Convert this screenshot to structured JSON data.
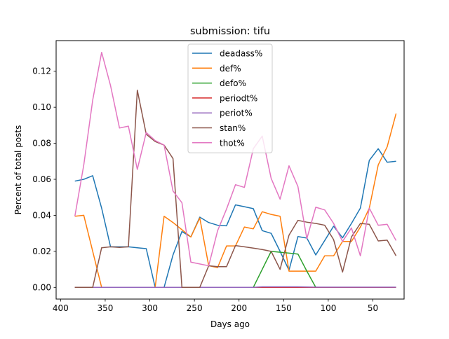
{
  "chart_data": {
    "type": "line",
    "title": "submission: tifu",
    "xlabel": "Days ago",
    "ylabel": "Percent of total posts",
    "xlim": [
      405,
      15
    ],
    "ylim": [
      -0.0065,
      0.137
    ],
    "x_ticks": [
      400,
      350,
      300,
      250,
      200,
      150,
      100,
      50
    ],
    "y_ticks": [
      0.0,
      0.02,
      0.04,
      0.06,
      0.08,
      0.1,
      0.12
    ],
    "y_tick_labels": [
      "0.00",
      "0.02",
      "0.04",
      "0.06",
      "0.08",
      "0.10",
      "0.12"
    ],
    "grid": false,
    "legend_position": "top-center",
    "x": [
      384,
      374,
      364,
      354,
      344,
      334,
      324,
      314,
      304,
      294,
      284,
      274,
      264,
      254,
      244,
      234,
      224,
      214,
      204,
      194,
      184,
      174,
      164,
      154,
      144,
      134,
      124,
      114,
      104,
      94,
      84,
      74,
      64,
      54,
      44,
      34,
      24
    ],
    "series": [
      {
        "name": "deadass%",
        "color": "#1f77b4",
        "values": [
          0.059,
          0.06,
          0.062,
          0.044,
          0.0225,
          0.0225,
          0.0225,
          0.022,
          0.0215,
          0.0,
          0.0,
          0.018,
          0.031,
          0.028,
          0.039,
          0.036,
          0.0345,
          0.0342,
          0.0458,
          0.0448,
          0.0437,
          0.0315,
          0.03,
          0.02,
          0.0095,
          0.0282,
          0.0274,
          0.018,
          0.026,
          0.034,
          0.0275,
          0.0355,
          0.044,
          0.0705,
          0.077,
          0.0695,
          0.07
        ]
      },
      {
        "name": "def%",
        "color": "#ff7f0e",
        "values": [
          0.0395,
          0.04,
          0.02,
          0.0,
          0.0,
          0.0,
          0.0,
          0.0,
          0.0,
          0.0,
          0.0395,
          0.036,
          0.032,
          0.028,
          0.0385,
          0.012,
          0.011,
          0.023,
          0.023,
          0.0335,
          0.0325,
          0.042,
          0.0405,
          0.0395,
          0.009,
          0.009,
          0.009,
          0.009,
          0.0175,
          0.0175,
          0.0255,
          0.0255,
          0.0335,
          0.044,
          0.068,
          0.078,
          0.0965
        ]
      },
      {
        "name": "defo%",
        "color": "#2ca02c",
        "values": [
          0.0,
          0.0,
          0.0,
          0.0,
          0.0,
          0.0,
          0.0,
          0.0,
          0.0,
          0.0,
          0.0,
          0.0,
          0.0,
          0.0,
          0.0,
          0.0,
          0.0,
          0.0,
          0.0,
          0.0,
          0.0,
          0.01,
          0.02,
          0.0195,
          0.019,
          0.0185,
          0.009,
          0.0,
          0.0,
          0.0,
          0.0,
          0.0,
          0.0,
          0.0,
          0.0,
          0.0,
          0.0
        ]
      },
      {
        "name": "periodt%",
        "color": "#d62728",
        "values": [
          0.0,
          0.0,
          0.0,
          0.0,
          0.0,
          0.0,
          0.0,
          0.0,
          0.0,
          0.0,
          0.0,
          0.0,
          0.0,
          0.0,
          0.0,
          0.0,
          0.0,
          0.0,
          0.0,
          0.0,
          0.0,
          0.0,
          0.0,
          0.0,
          0.0,
          0.0,
          0.0,
          0.0,
          0.0,
          0.0,
          0.0,
          0.0,
          0.0,
          0.0,
          0.0,
          0.0,
          0.0
        ]
      },
      {
        "name": "periot%",
        "color": "#9467bd",
        "values": [
          0.0,
          0.0,
          0.0,
          0.0,
          0.0,
          0.0,
          0.0,
          0.0,
          0.0,
          0.0,
          0.0,
          0.0,
          0.0,
          0.0,
          0.0,
          0.0,
          0.0,
          0.0,
          0.0,
          0.0,
          0.0,
          0.0003,
          0.0003,
          0.0003,
          0.0003,
          0.0003,
          0.0002,
          0.0001,
          0.0001,
          0.0001,
          0.0001,
          0.0001,
          0.0001,
          0.0001,
          0.0001,
          0.0001,
          0.0001
        ]
      },
      {
        "name": "stan%",
        "color": "#8c564b",
        "values": [
          0.0,
          0.0,
          0.0,
          0.022,
          0.0225,
          0.0222,
          0.0225,
          0.1095,
          0.085,
          0.081,
          0.079,
          0.0715,
          0.0,
          0.0,
          0.0,
          0.012,
          0.0115,
          0.0115,
          0.0232,
          0.0225,
          0.0218,
          0.021,
          0.02,
          0.01,
          0.029,
          0.0372,
          0.0362,
          0.0355,
          0.0345,
          0.0265,
          0.0085,
          0.028,
          0.0355,
          0.035,
          0.0258,
          0.0262,
          0.0175
        ]
      },
      {
        "name": "thot%",
        "color": "#e377c2",
        "values": [
          0.0395,
          0.068,
          0.104,
          0.1305,
          0.112,
          0.0885,
          0.0895,
          0.0655,
          0.086,
          0.0815,
          0.079,
          0.0535,
          0.047,
          0.014,
          0.013,
          0.012,
          0.0315,
          0.0435,
          0.057,
          0.0555,
          0.077,
          0.084,
          0.0605,
          0.049,
          0.0675,
          0.056,
          0.027,
          0.0445,
          0.043,
          0.0355,
          0.0255,
          0.033,
          0.0175,
          0.044,
          0.0345,
          0.035,
          0.026
        ]
      }
    ]
  }
}
